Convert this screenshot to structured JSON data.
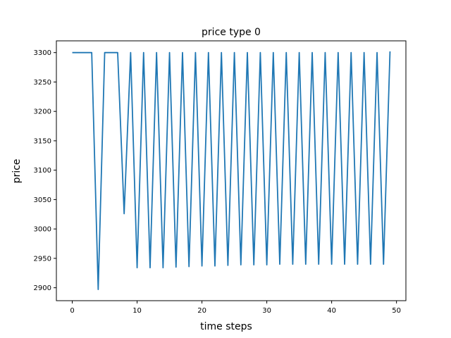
{
  "chart_data": {
    "type": "line",
    "title": "price type 0",
    "xlabel": "time steps",
    "ylabel": "price",
    "xlim": [
      -2.45,
      51.45
    ],
    "ylim": [
      2878,
      3320
    ],
    "xticks": [
      0,
      10,
      20,
      30,
      40,
      50
    ],
    "yticks": [
      2900,
      2950,
      3000,
      3050,
      3100,
      3150,
      3200,
      3250,
      3300
    ],
    "grid": false,
    "series": [
      {
        "color": "#1f77b4",
        "x": [
          0,
          1,
          2,
          3,
          4,
          5,
          6,
          7,
          8,
          9,
          10,
          11,
          12,
          13,
          14,
          15,
          16,
          17,
          18,
          19,
          20,
          21,
          22,
          23,
          24,
          25,
          26,
          27,
          28,
          29,
          30,
          31,
          32,
          33,
          34,
          35,
          36,
          37,
          38,
          39,
          40,
          41,
          42,
          43,
          44,
          45,
          46,
          47,
          48,
          49
        ],
        "y": [
          3300,
          3300,
          3300,
          3300,
          2897,
          3300,
          3300,
          3300,
          3026,
          3300,
          2934,
          3300,
          2934,
          3300,
          2934,
          3300,
          2935,
          3300,
          2936,
          3300,
          2937,
          3300,
          2937,
          3300,
          2938,
          3300,
          2939,
          3300,
          2939,
          3300,
          2939,
          3300,
          2940,
          3300,
          2940,
          3300,
          2940,
          3300,
          2940,
          3300,
          2940,
          3300,
          2940,
          3300,
          2940,
          3300,
          2940,
          3300,
          2940,
          3302
        ]
      }
    ]
  }
}
